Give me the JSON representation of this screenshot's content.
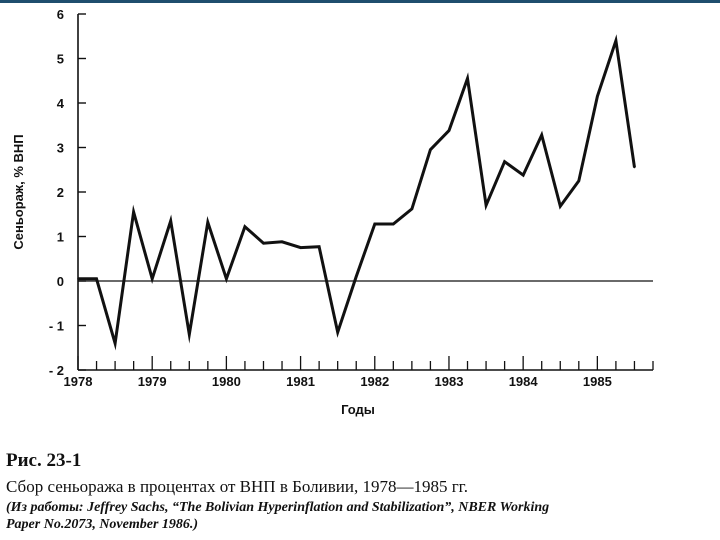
{
  "chart_data": {
    "type": "line",
    "ylabel": "Сеньораж, % ВНП",
    "xlabel": "Годы",
    "ylim": [
      -2,
      6
    ],
    "xlim": [
      1978,
      1985.75
    ],
    "y_ticks": [
      {
        "value": 6,
        "label": "6"
      },
      {
        "value": 5,
        "label": "5"
      },
      {
        "value": 4,
        "label": "4"
      },
      {
        "value": 3,
        "label": "3"
      },
      {
        "value": 2,
        "label": "2"
      },
      {
        "value": 1,
        "label": "1"
      },
      {
        "value": 0,
        "label": "0"
      },
      {
        "value": -1,
        "label": "- 1"
      },
      {
        "value": -2,
        "label": "- 2"
      }
    ],
    "x_ticks": [
      {
        "value": 1978,
        "label": "1978"
      },
      {
        "value": 1979,
        "label": "1979"
      },
      {
        "value": 1980,
        "label": "1980"
      },
      {
        "value": 1981,
        "label": "1981"
      },
      {
        "value": 1982,
        "label": "1982"
      },
      {
        "value": 1983,
        "label": "1983"
      },
      {
        "value": 1984,
        "label": "1984"
      },
      {
        "value": 1985,
        "label": "1985"
      }
    ],
    "minor_tick_step": 0.25,
    "zero_line": true,
    "grid": false,
    "series": [
      {
        "x": [
          1978.0,
          1978.25,
          1978.5,
          1978.75,
          1979.0,
          1979.25,
          1979.5,
          1979.75,
          1980.0,
          1980.25,
          1980.5,
          1980.75,
          1981.0,
          1981.25,
          1981.5,
          1981.75,
          1982.0,
          1982.25,
          1982.5,
          1982.75,
          1983.0,
          1983.25,
          1983.5,
          1983.75,
          1984.0,
          1984.25,
          1984.5,
          1984.75,
          1985.0,
          1985.25,
          1985.5
        ],
        "values": [
          0.05,
          0.05,
          -1.4,
          1.55,
          0.05,
          1.35,
          -1.2,
          1.32,
          0.05,
          1.22,
          0.85,
          0.88,
          0.75,
          0.77,
          -1.15,
          0.1,
          1.28,
          1.28,
          1.62,
          2.95,
          3.38,
          4.55,
          1.7,
          2.68,
          2.38,
          3.28,
          1.68,
          2.25,
          4.15,
          5.4,
          2.55
        ]
      }
    ]
  },
  "caption": {
    "figure_label": "Рис. 23-1",
    "description": "Сбор сеньоража в процентах от ВНП в Боливии, 1978—1985 гг.",
    "source_line1": "(Из работы: Jeffrey Sachs, “The Bolivian Hyperinflation and Stabilization”, NBER Working",
    "source_line2": "Paper No.2073, November 1986.)"
  },
  "colors": {
    "line": "#111111",
    "axis": "#111111",
    "top_rule": "#1f4e6e"
  }
}
